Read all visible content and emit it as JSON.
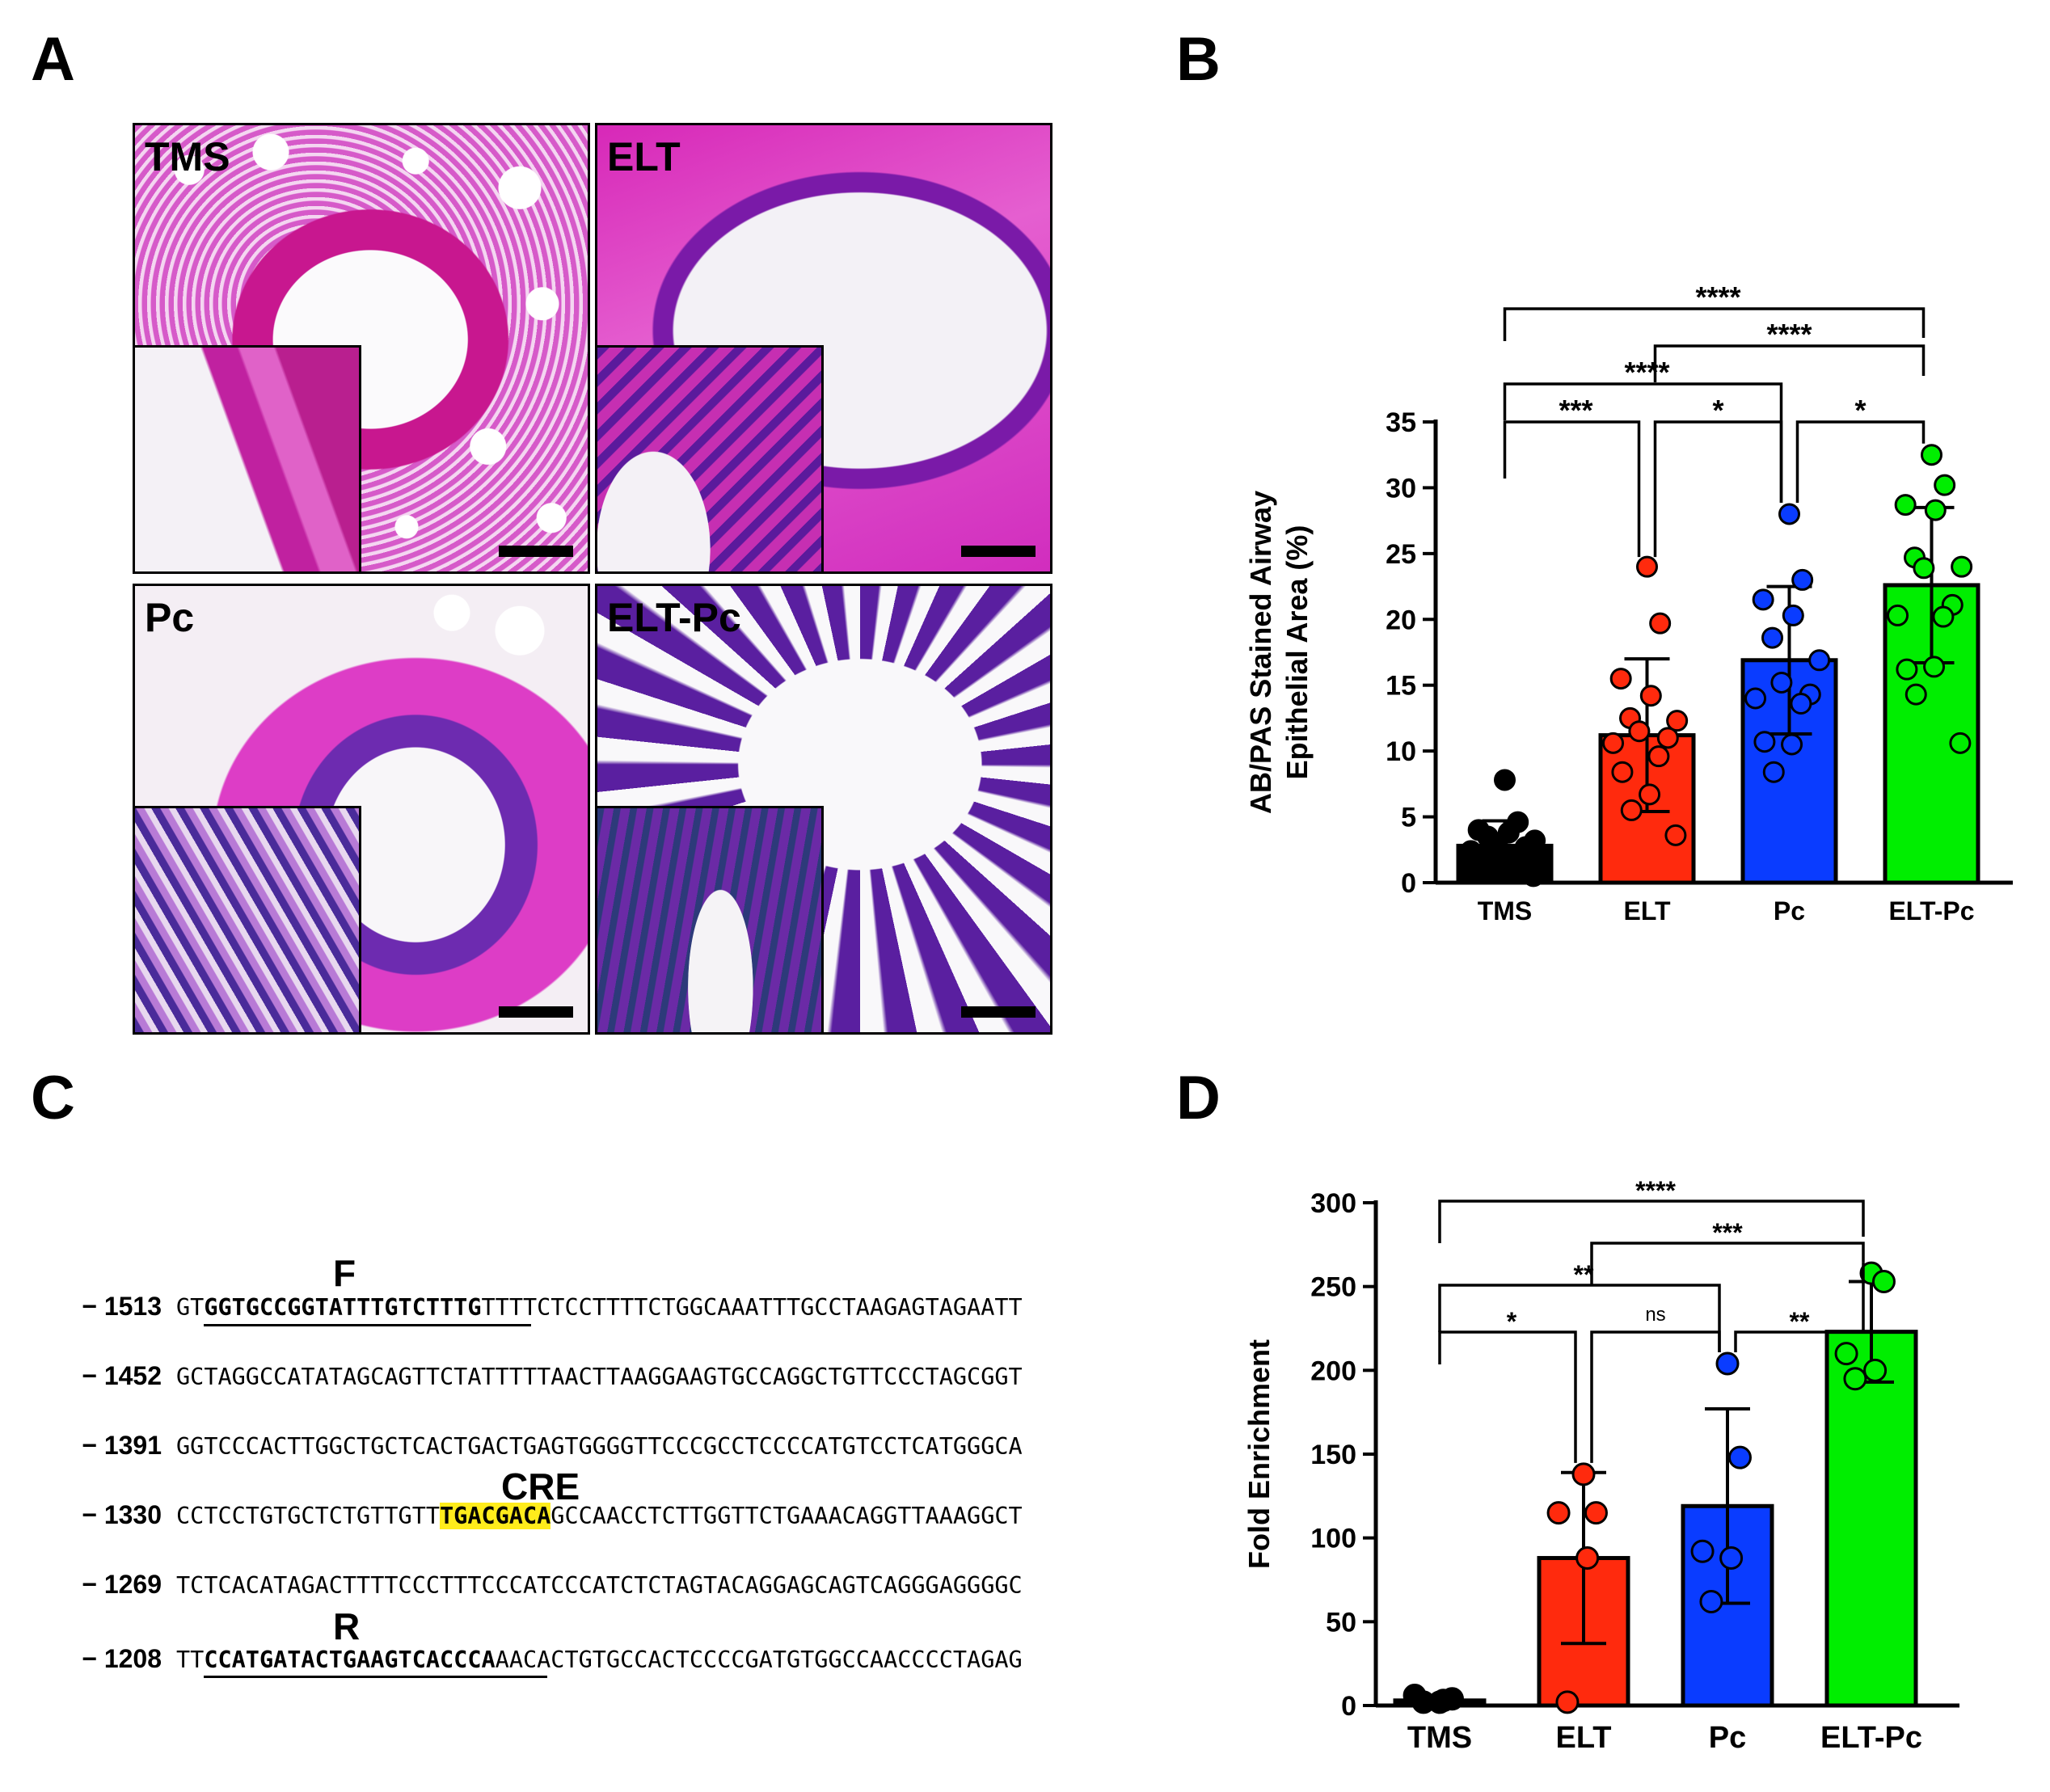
{
  "panels": {
    "a": "A",
    "b": "B",
    "c": "C",
    "d": "D"
  },
  "micrographs": [
    {
      "label": "TMS"
    },
    {
      "label": "ELT"
    },
    {
      "label": "Pc"
    },
    {
      "label": "ELT-Pc"
    }
  ],
  "sequence": {
    "rows": [
      {
        "num": "− 1513",
        "pre": "GT",
        "primer": "GGTGCCGGTATTTGTCTTTG",
        "post": "TTTTCTCCTTTTCTGGCAAATTTGCCTAAGAGTAGAATT"
      },
      {
        "num": "− 1452",
        "text": "GCTAGGCCATATAGCAGTTCTATTTTTAACTTAAGGAAGTGCCAGGCTGTTCCCTAGCGGT"
      },
      {
        "num": "− 1391",
        "text": "GGTCCCACTTGGCTGCTCACTGACTGAGTGGGGTTCCCGCCTCCCCATGTCCTCATGGGCA"
      },
      {
        "num": "− 1330",
        "pre": "CCTCCTGTGCTCTGTTGTT",
        "cre": "TGACGACA",
        "post": "GCCAACCTCTTGGTTCTGAAACAGGTTAAAGGCT"
      },
      {
        "num": "− 1269",
        "text": "TCTCACATAGACTTTTCCCTTTCCCATCCCATCTCTAGTACAGGAGCAGTCAGGGAGGGGC"
      },
      {
        "num": "− 1208",
        "pre": "TT",
        "primer": "CCATGATACTGAAGTCACCCA",
        "post": "AACACTGTGCCACTCCCCGATGTGGCCAACCCCTAGAG"
      }
    ],
    "labels": {
      "forward": "F",
      "cre": "CRE",
      "reverse": "R"
    }
  },
  "chart_data": [
    {
      "type": "bar",
      "panel": "B",
      "categories": [
        "TMS",
        "ELT",
        "Pc",
        "ELT-Pc"
      ],
      "values": [
        2.8,
        11.2,
        16.9,
        22.6
      ],
      "sd": [
        1.9,
        5.8,
        5.6,
        5.9
      ],
      "colors": [
        "#000000",
        "#ff2a0d",
        "#0a3cff",
        "#00ee00"
      ],
      "points": [
        [
          7.8,
          4.6,
          4.0,
          3.8,
          3.5,
          3.2,
          3.0,
          2.7,
          2.4,
          2.1,
          1.6,
          1.2,
          0.9,
          0.5
        ],
        [
          24.0,
          19.7,
          15.5,
          14.2,
          12.5,
          12.3,
          11.5,
          11.0,
          10.6,
          9.6,
          8.4,
          6.7,
          5.5,
          3.6
        ],
        [
          28.0,
          23.0,
          21.5,
          20.3,
          18.6,
          16.9,
          15.2,
          14.3,
          14.0,
          13.6,
          10.7,
          10.5,
          8.4
        ],
        [
          32.5,
          30.2,
          28.7,
          28.3,
          24.7,
          24.0,
          23.9,
          21.1,
          20.3,
          20.2,
          16.2,
          16.4,
          14.3,
          10.6
        ]
      ],
      "ylabel_line1": "AB/PAS Stained Airway",
      "ylabel_line2": "Epithelial Area (%)",
      "ylim": [
        0,
        35
      ],
      "yticks": [
        0,
        5,
        10,
        15,
        20,
        25,
        30,
        35
      ],
      "significance": [
        {
          "from": 0,
          "to": 1,
          "label": "***"
        },
        {
          "from": 1,
          "to": 2,
          "label": "*"
        },
        {
          "from": 2,
          "to": 3,
          "label": "*"
        },
        {
          "from": 0,
          "to": 2,
          "label": "****"
        },
        {
          "from": 1,
          "to": 3,
          "label": "****"
        },
        {
          "from": 0,
          "to": 3,
          "label": "****"
        }
      ]
    },
    {
      "type": "bar",
      "panel": "D",
      "categories": [
        "TMS",
        "ELT",
        "Pc",
        "ELT-Pc"
      ],
      "values": [
        3,
        88,
        119,
        223
      ],
      "sd": [
        2,
        51,
        58,
        30
      ],
      "colors": [
        "#000000",
        "#ff2a0d",
        "#0a3cff",
        "#00ee00"
      ],
      "points": [
        [
          2,
          4,
          6,
          3,
          2
        ],
        [
          138,
          115,
          115,
          88,
          2
        ],
        [
          204,
          148,
          92,
          88,
          62
        ],
        [
          258,
          253,
          210,
          200,
          195
        ]
      ],
      "ylabel": "Fold Enrichment",
      "ylim": [
        0,
        300
      ],
      "yticks": [
        0,
        50,
        100,
        150,
        200,
        250,
        300
      ],
      "significance": [
        {
          "from": 0,
          "to": 1,
          "label": "*"
        },
        {
          "from": 1,
          "to": 2,
          "label": "ns"
        },
        {
          "from": 2,
          "to": 3,
          "label": "**"
        },
        {
          "from": 0,
          "to": 2,
          "label": "**"
        },
        {
          "from": 1,
          "to": 3,
          "label": "***"
        },
        {
          "from": 0,
          "to": 3,
          "label": "****"
        }
      ]
    }
  ]
}
